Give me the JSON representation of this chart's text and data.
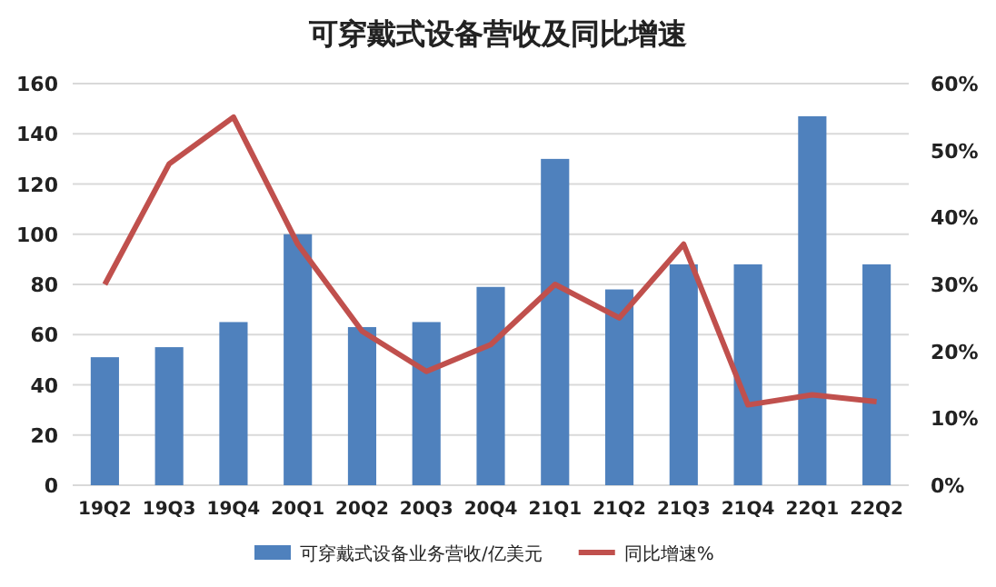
{
  "chart_data": {
    "type": "bar",
    "title": "可穿戴式设备营收及同比增速",
    "categories": [
      "19Q2",
      "19Q3",
      "19Q4",
      "20Q1",
      "20Q2",
      "20Q3",
      "20Q4",
      "21Q1",
      "21Q2",
      "21Q3",
      "21Q4",
      "22Q1",
      "22Q2"
    ],
    "series": [
      {
        "name": "可穿戴式设备业务营收/亿美元",
        "color": "#4f81bd",
        "values": [
          51,
          55,
          65,
          100,
          63,
          65,
          79,
          130,
          78,
          88,
          88,
          147,
          88
        ]
      },
      {
        "name": "同比增速%",
        "type": "line",
        "axis": "y2",
        "color": "#c0504d",
        "values": [
          30,
          48,
          55,
          36,
          23,
          17,
          21,
          30,
          25,
          36,
          12,
          13.5,
          12.5
        ]
      }
    ],
    "ylim": [
      0,
      160
    ],
    "yticks": [
      0,
      20,
      40,
      60,
      80,
      100,
      120,
      140,
      160
    ],
    "y2lim": [
      0,
      60
    ],
    "y2ticks": [
      {
        "value": 0,
        "label": "0%"
      },
      {
        "value": 10,
        "label": "10%"
      },
      {
        "value": 20,
        "label": "20%"
      },
      {
        "value": 30,
        "label": "30%"
      },
      {
        "value": 40,
        "label": "40%"
      },
      {
        "value": 50,
        "label": "50%"
      },
      {
        "value": 60,
        "label": "60%"
      }
    ],
    "grid": "y",
    "legend": "bottom",
    "marker": "none"
  }
}
